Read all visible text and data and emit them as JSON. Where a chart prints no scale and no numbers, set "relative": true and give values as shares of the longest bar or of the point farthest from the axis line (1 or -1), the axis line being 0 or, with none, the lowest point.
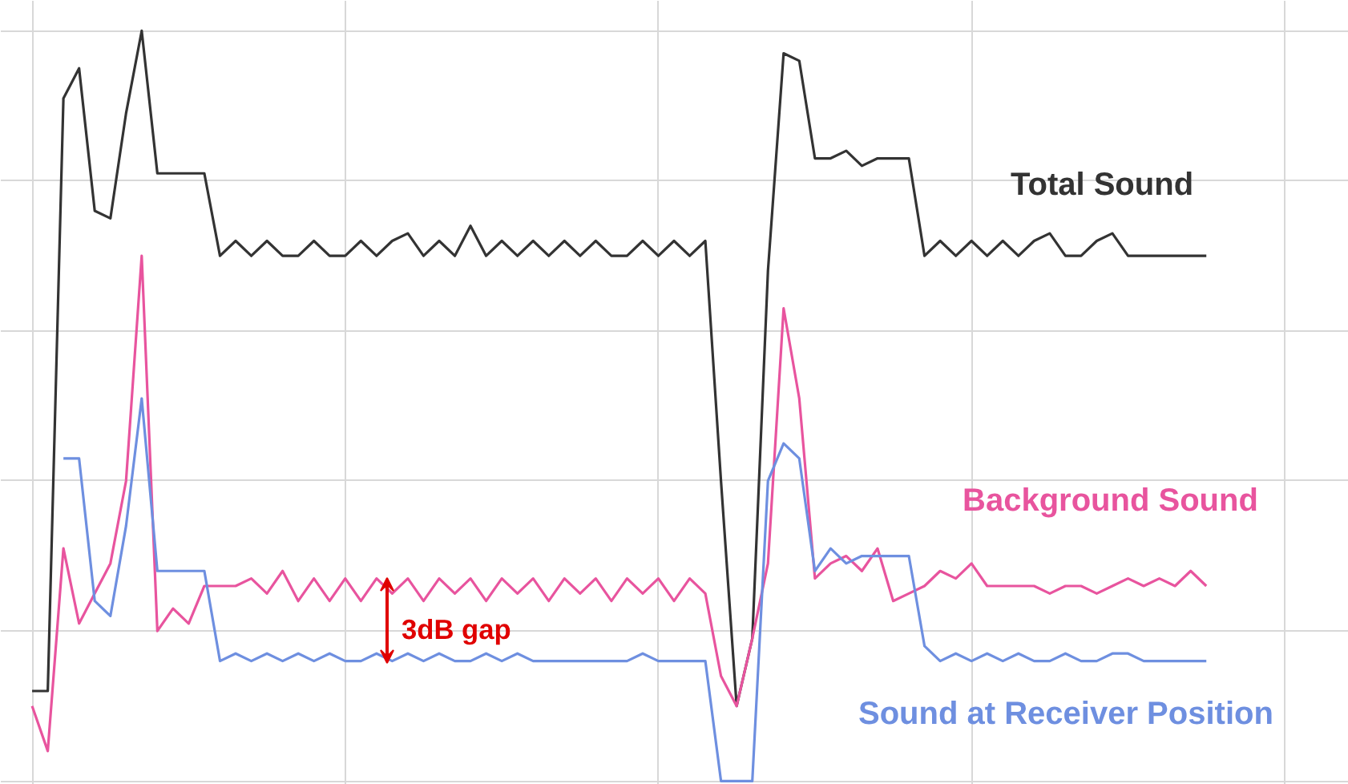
{
  "chart_data": {
    "type": "line",
    "relative": true,
    "grid": true,
    "categories": [
      null,
      null,
      null,
      null,
      null,
      null,
      null,
      null,
      null,
      null,
      null,
      null,
      null,
      null,
      null,
      null,
      null,
      null,
      null,
      null,
      null,
      null,
      null,
      null,
      null,
      null,
      null,
      null,
      null,
      null,
      null,
      null,
      null,
      null,
      null,
      null,
      null,
      null,
      null,
      null,
      null,
      null,
      null,
      null,
      null,
      null,
      null,
      null,
      null,
      null,
      null,
      null,
      null,
      null,
      null,
      null,
      null,
      null,
      null,
      null,
      null,
      null,
      null,
      null,
      null,
      null,
      null,
      null,
      null,
      null,
      null,
      null,
      null,
      null,
      null,
      null
    ],
    "series": [
      {
        "name": "Total Sound",
        "color": "#333333",
        "values": [
          0.12,
          0.12,
          0.91,
          0.95,
          0.76,
          0.75,
          0.89,
          1.0,
          0.81,
          0.81,
          0.81,
          0.81,
          0.7,
          0.72,
          0.7,
          0.72,
          0.7,
          0.7,
          0.72,
          0.7,
          0.7,
          0.72,
          0.7,
          0.72,
          0.73,
          0.7,
          0.72,
          0.7,
          0.74,
          0.7,
          0.72,
          0.7,
          0.72,
          0.7,
          0.72,
          0.7,
          0.72,
          0.7,
          0.7,
          0.72,
          0.7,
          0.72,
          0.7,
          0.72,
          0.4,
          0.1,
          0.19,
          0.68,
          0.97,
          0.96,
          0.83,
          0.83,
          0.84,
          0.82,
          0.83,
          0.83,
          0.83,
          0.7,
          0.72,
          0.7,
          0.72,
          0.7,
          0.72,
          0.7,
          0.72,
          0.73,
          0.7,
          0.7,
          0.72,
          0.73,
          0.7,
          0.7,
          0.7,
          0.7,
          0.7,
          0.7
        ]
      },
      {
        "name": "Background Sound",
        "color": "#e8549e",
        "values": [
          0.1,
          0.04,
          0.31,
          0.21,
          0.25,
          0.29,
          0.4,
          0.7,
          0.2,
          0.23,
          0.21,
          0.26,
          0.26,
          0.26,
          0.27,
          0.25,
          0.28,
          0.24,
          0.27,
          0.24,
          0.27,
          0.24,
          0.27,
          0.25,
          0.27,
          0.24,
          0.27,
          0.25,
          0.27,
          0.24,
          0.27,
          0.25,
          0.27,
          0.24,
          0.27,
          0.25,
          0.27,
          0.24,
          0.27,
          0.25,
          0.27,
          0.24,
          0.27,
          0.25,
          0.14,
          0.1,
          0.19,
          0.29,
          0.63,
          0.51,
          0.27,
          0.29,
          0.3,
          0.28,
          0.31,
          0.24,
          0.25,
          0.26,
          0.28,
          0.27,
          0.29,
          0.26,
          0.26,
          0.26,
          0.26,
          0.25,
          0.26,
          0.26,
          0.25,
          0.26,
          0.27,
          0.26,
          0.27,
          0.26,
          0.28,
          0.26
        ]
      },
      {
        "name": "Sound at Receiver Position",
        "color": "#6e8fe0",
        "values": [
          null,
          null,
          0.43,
          0.43,
          0.24,
          0.22,
          0.34,
          0.51,
          0.28,
          0.28,
          0.28,
          0.28,
          0.16,
          0.17,
          0.16,
          0.17,
          0.16,
          0.17,
          0.16,
          0.17,
          0.16,
          0.16,
          0.17,
          0.16,
          0.17,
          0.16,
          0.17,
          0.16,
          0.16,
          0.17,
          0.16,
          0.17,
          0.16,
          0.16,
          0.16,
          0.16,
          0.16,
          0.16,
          0.16,
          0.17,
          0.16,
          0.16,
          0.16,
          0.16,
          0.0,
          0.0,
          0.0,
          0.4,
          0.45,
          0.43,
          0.28,
          0.31,
          0.29,
          0.3,
          0.3,
          0.3,
          0.3,
          0.18,
          0.16,
          0.17,
          0.16,
          0.17,
          0.16,
          0.17,
          0.16,
          0.16,
          0.17,
          0.16,
          0.16,
          0.17,
          0.17,
          0.16,
          0.16,
          0.16,
          0.16,
          0.16
        ]
      }
    ],
    "annotations": [
      "3dB gap"
    ]
  }
}
